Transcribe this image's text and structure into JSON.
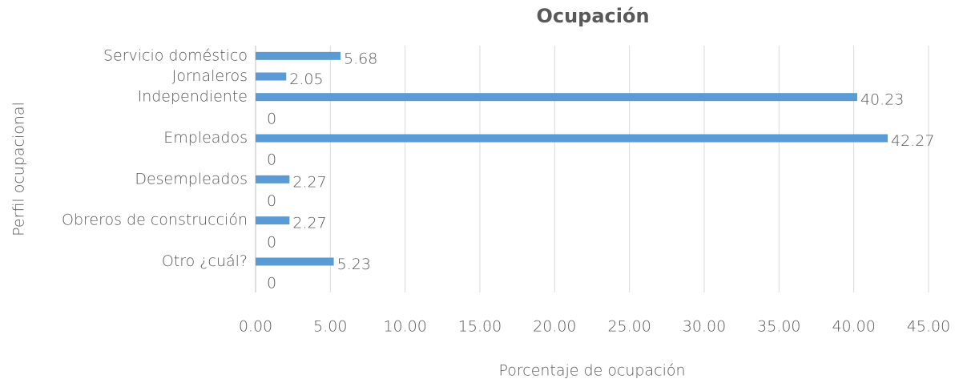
{
  "chart_data": {
    "type": "bar",
    "orientation": "horizontal",
    "title": "Ocupación",
    "x_label": "Porcentaje de ocupación",
    "y_label": "Perfil ocupacional",
    "categories": [
      "Servicio doméstico",
      "Jornaleros",
      "Independiente",
      null,
      "Empleados",
      null,
      "Desempleados",
      null,
      "Obreros de construcción",
      null,
      "Otro ¿cuál?",
      null
    ],
    "values": [
      5.68,
      2.05,
      40.23,
      0,
      42.27,
      0,
      2.27,
      0,
      2.27,
      0,
      5.23,
      0
    ],
    "color": "#5b9bd5",
    "xlim": [
      0,
      45
    ],
    "xticks": [
      {
        "value": 0,
        "label": "0.00"
      },
      {
        "value": 5,
        "label": "5.00"
      },
      {
        "value": 10,
        "label": "10.00"
      },
      {
        "value": 15,
        "label": "15.00"
      },
      {
        "value": 20,
        "label": "20.00"
      },
      {
        "value": 25,
        "label": "25.00"
      },
      {
        "value": 30,
        "label": "30.00"
      },
      {
        "value": 35,
        "label": "35.00"
      },
      {
        "value": 40,
        "label": "40.00"
      },
      {
        "value": 45,
        "label": "45.00"
      }
    ],
    "grid": true
  }
}
